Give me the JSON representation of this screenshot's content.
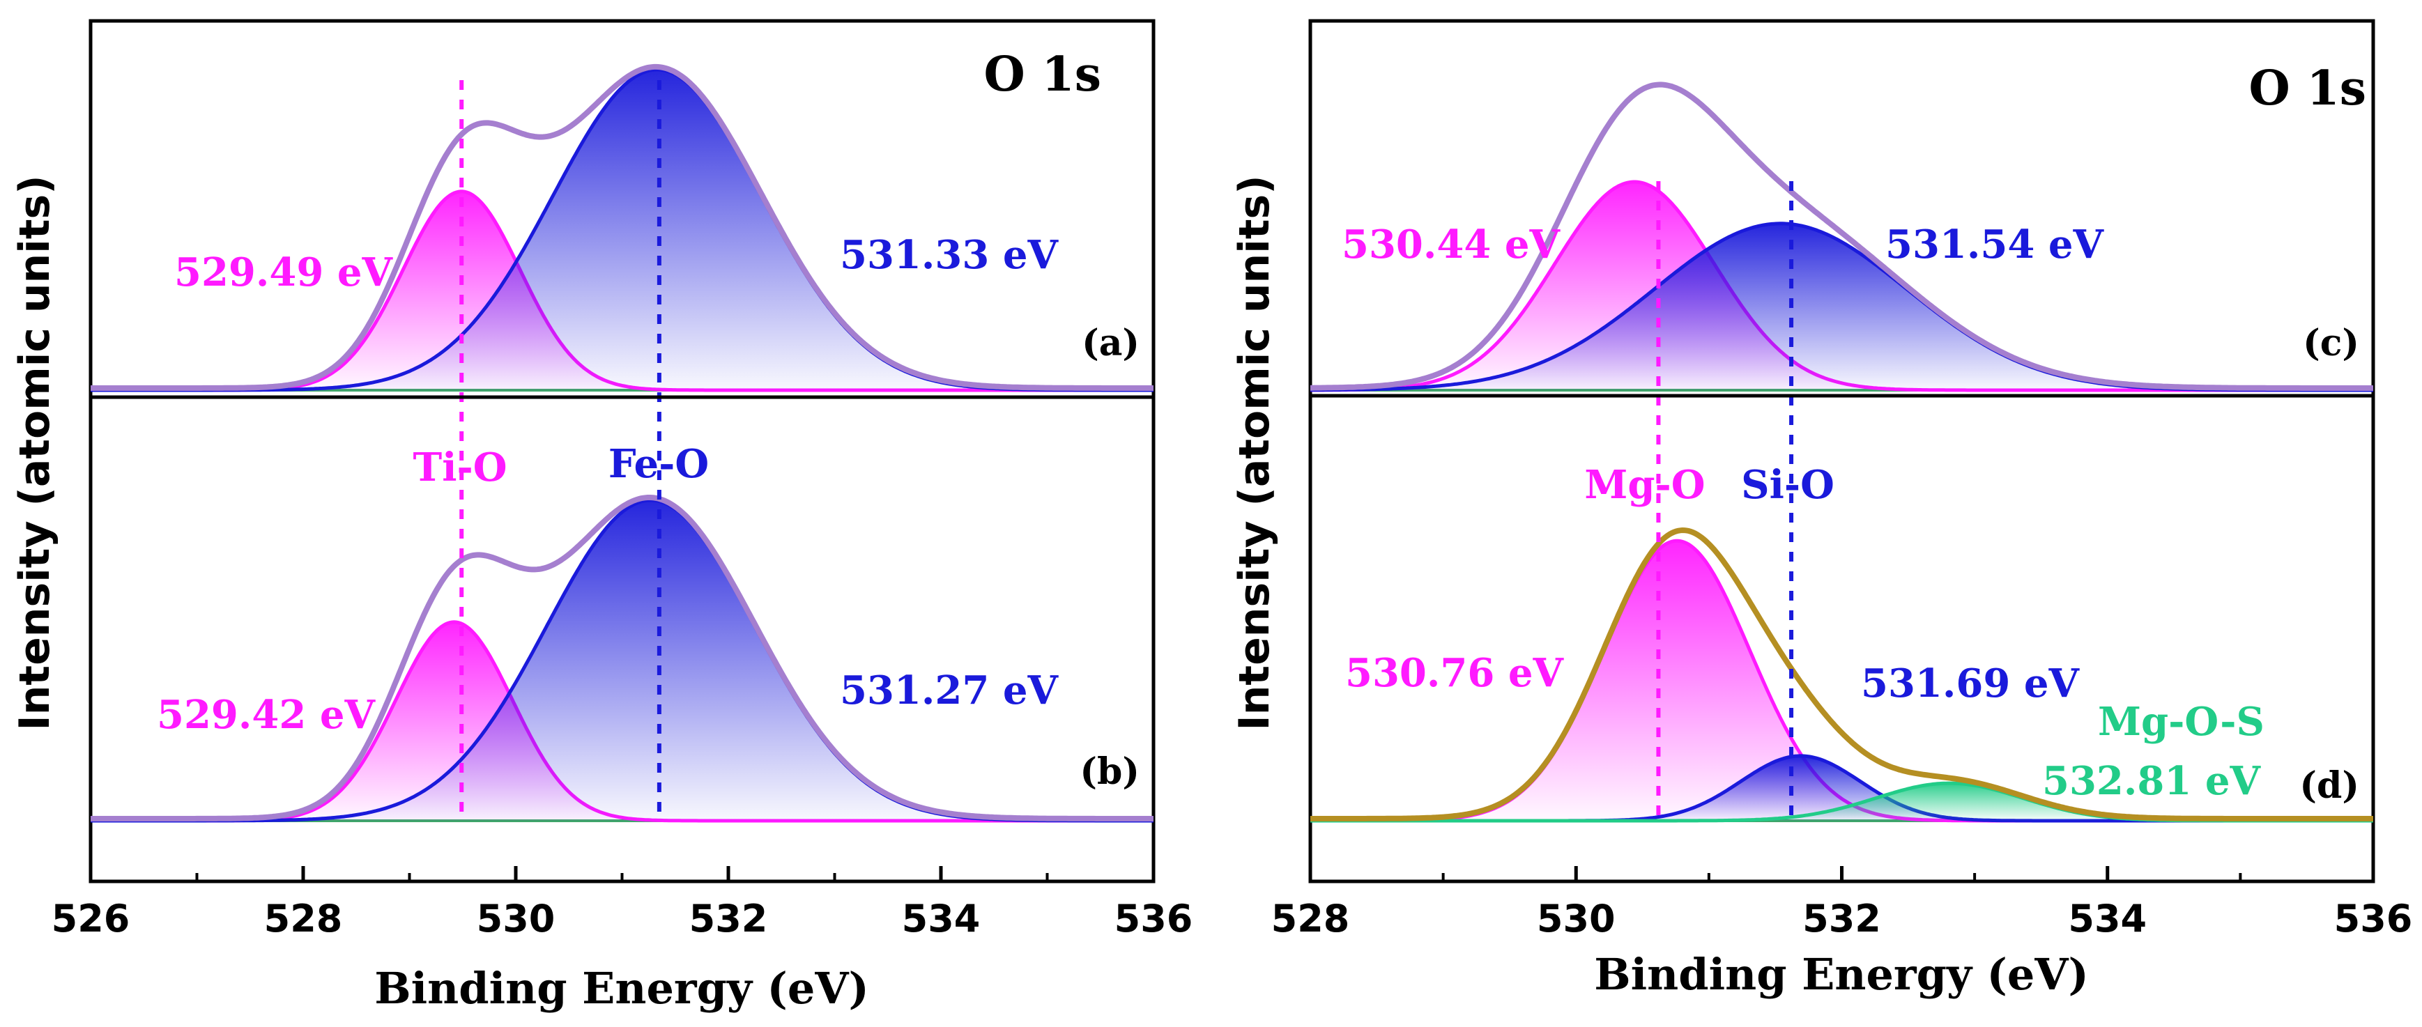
{
  "chart_data": [
    {
      "type": "line",
      "title": "O 1s",
      "xlabel": "Binding Energy (eV)",
      "ylabel": "Intensity (atomic units)",
      "xlim": [
        526,
        536
      ],
      "xticks": [
        "526",
        "528",
        "530",
        "532",
        "534",
        "536"
      ],
      "reference_lines": [
        {
          "x": 529.49,
          "color": "#ff1aff",
          "label": "Ti-O"
        },
        {
          "x": 531.35,
          "color": "#1a1adb",
          "label": "Fe-O"
        }
      ],
      "spectra": [
        {
          "panel_label": "(a)",
          "envelope_color": "#a57fcf",
          "peaks": [
            {
              "name": "Ti-O",
              "center": 529.49,
              "height": 0.62,
              "sigma": 0.55,
              "color": "#ff1aff",
              "label": "529.49 eV"
            },
            {
              "name": "Fe-O",
              "center": 531.33,
              "height": 1.0,
              "sigma": 0.98,
              "color": "#1a1adb",
              "label": "531.33 eV"
            }
          ]
        },
        {
          "panel_label": "(b)",
          "envelope_color": "#a57fcf",
          "peaks": [
            {
              "name": "Ti-O",
              "center": 529.42,
              "height": 0.62,
              "sigma": 0.55,
              "color": "#ff1aff",
              "label": "529.42 eV"
            },
            {
              "name": "Fe-O",
              "center": 531.27,
              "height": 1.0,
              "sigma": 0.98,
              "color": "#1a1adb",
              "label": "531.27 eV"
            }
          ]
        }
      ]
    },
    {
      "type": "line",
      "title": "O 1s",
      "xlabel": "Binding Energy (eV)",
      "ylabel": "Intensity (atomic units)",
      "xlim": [
        528,
        536
      ],
      "xticks": [
        "528",
        "530",
        "532",
        "534",
        "536"
      ],
      "reference_lines": [
        {
          "x": 530.62,
          "color": "#ff1aff",
          "label": "Mg-O"
        },
        {
          "x": 531.62,
          "color": "#1a1adb",
          "label": "Si-O"
        }
      ],
      "spectra": [
        {
          "panel_label": "(c)",
          "envelope_color": "#a57fcf",
          "peaks": [
            {
              "name": "Mg-O",
              "center": 530.44,
              "height": 0.65,
              "sigma": 0.6,
              "color": "#ff1aff",
              "label": "530.44 eV"
            },
            {
              "name": "Si-O",
              "center": 531.54,
              "height": 0.52,
              "sigma": 0.95,
              "color": "#1a1adb",
              "label": "531.54 eV"
            }
          ]
        },
        {
          "panel_label": "(d)",
          "envelope_color": "#b58f22",
          "peaks": [
            {
              "name": "Mg-O",
              "center": 530.76,
              "height": 0.82,
              "sigma": 0.55,
              "color": "#ff1aff",
              "label": "530.76 eV"
            },
            {
              "name": "Si-O",
              "center": 531.69,
              "height": 0.19,
              "sigma": 0.45,
              "color": "#1a1adb",
              "label": "531.69 eV"
            },
            {
              "name": "Mg-O-S",
              "center": 532.81,
              "height": 0.11,
              "sigma": 0.55,
              "color": "#22cc88",
              "label": "532.81 eV",
              "name_label": "Mg-O-S"
            }
          ]
        }
      ]
    }
  ]
}
